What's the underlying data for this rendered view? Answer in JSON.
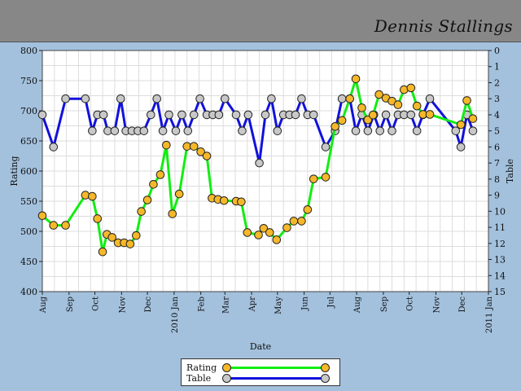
{
  "header": {
    "name": "Dennis Stallings"
  },
  "colors": {
    "background": "#a3c1dd",
    "header": "#878787",
    "rating_line": "#11ee11",
    "rating_marker": "#f5b82a",
    "table_line": "#1111dd",
    "table_marker": "#c8c8c8",
    "grid": "#dddddd"
  },
  "legend": {
    "rating_label": "Rating",
    "table_label": "Table"
  },
  "chart_data": {
    "type": "line",
    "title": "",
    "xlabel": "Date",
    "ylabel": "Rating",
    "y2label": "Table",
    "ylim": [
      400,
      800
    ],
    "y2lim": [
      0,
      15
    ],
    "y2_inverted": true,
    "y_ticks": [
      400,
      450,
      500,
      550,
      600,
      650,
      700,
      750,
      800
    ],
    "y2_ticks": [
      0,
      1,
      2,
      3,
      4,
      5,
      6,
      7,
      8,
      9,
      10,
      11,
      12,
      13,
      14,
      15
    ],
    "xlim": [
      "2009-08-01",
      "2011-01-01"
    ],
    "x_ticks": [
      {
        "date": "2009-08-01",
        "label": "Aug"
      },
      {
        "date": "2009-09-01",
        "label": "Sep"
      },
      {
        "date": "2009-10-01",
        "label": "Oct"
      },
      {
        "date": "2009-11-01",
        "label": "Nov"
      },
      {
        "date": "2009-12-01",
        "label": "Dec"
      },
      {
        "date": "2010-01-01",
        "label": "2010 Jan"
      },
      {
        "date": "2010-02-01",
        "label": "Feb"
      },
      {
        "date": "2010-03-01",
        "label": "Mar"
      },
      {
        "date": "2010-04-01",
        "label": "Apr"
      },
      {
        "date": "2010-05-01",
        "label": "May"
      },
      {
        "date": "2010-06-01",
        "label": "Jun"
      },
      {
        "date": "2010-07-01",
        "label": "Jul"
      },
      {
        "date": "2010-08-01",
        "label": "Aug"
      },
      {
        "date": "2010-09-01",
        "label": "Sep"
      },
      {
        "date": "2010-10-01",
        "label": "Oct"
      },
      {
        "date": "2010-11-01",
        "label": "Nov"
      },
      {
        "date": "2010-12-01",
        "label": "Dec"
      },
      {
        "date": "2011-01-01",
        "label": "2011 Jan"
      }
    ],
    "grid": true,
    "legend_position": "bottom-center",
    "series": [
      {
        "name": "Rating",
        "axis": "left",
        "points": [
          [
            "2009-08-01",
            526
          ],
          [
            "2009-08-14",
            510
          ],
          [
            "2009-08-28",
            510
          ],
          [
            "2009-09-20",
            560
          ],
          [
            "2009-09-28",
            558
          ],
          [
            "2009-10-04",
            521
          ],
          [
            "2009-10-10",
            466
          ],
          [
            "2009-10-15",
            495
          ],
          [
            "2009-10-21",
            490
          ],
          [
            "2009-10-28",
            481
          ],
          [
            "2009-11-04",
            481
          ],
          [
            "2009-11-11",
            479
          ],
          [
            "2009-11-18",
            493
          ],
          [
            "2009-11-24",
            533
          ],
          [
            "2009-12-01",
            552
          ],
          [
            "2009-12-08",
            578
          ],
          [
            "2009-12-16",
            594
          ],
          [
            "2009-12-23",
            643
          ],
          [
            "2009-12-30",
            529
          ],
          [
            "2010-01-07",
            562
          ],
          [
            "2010-01-16",
            641
          ],
          [
            "2010-01-24",
            641
          ],
          [
            "2010-02-01",
            632
          ],
          [
            "2010-02-08",
            625
          ],
          [
            "2010-02-14",
            555
          ],
          [
            "2010-02-21",
            553
          ],
          [
            "2010-02-28",
            551
          ],
          [
            "2010-03-14",
            550
          ],
          [
            "2010-03-20",
            549
          ],
          [
            "2010-03-27",
            498
          ],
          [
            "2010-04-09",
            494
          ],
          [
            "2010-04-15",
            505
          ],
          [
            "2010-04-22",
            498
          ],
          [
            "2010-04-30",
            486
          ],
          [
            "2010-05-12",
            506
          ],
          [
            "2010-05-20",
            517
          ],
          [
            "2010-05-29",
            517
          ],
          [
            "2010-06-05",
            536
          ],
          [
            "2010-06-12",
            587
          ],
          [
            "2010-06-26",
            590
          ],
          [
            "2010-07-07",
            674
          ],
          [
            "2010-07-15",
            684
          ],
          [
            "2010-07-24",
            720
          ],
          [
            "2010-07-31",
            753
          ],
          [
            "2010-08-07",
            705
          ],
          [
            "2010-08-14",
            685
          ],
          [
            "2010-08-20",
            693
          ],
          [
            "2010-08-27",
            727
          ],
          [
            "2010-09-04",
            721
          ],
          [
            "2010-09-11",
            716
          ],
          [
            "2010-09-18",
            710
          ],
          [
            "2010-09-25",
            735
          ],
          [
            "2010-10-03",
            738
          ],
          [
            "2010-10-10",
            708
          ],
          [
            "2010-10-17",
            694
          ],
          [
            "2010-10-25",
            694
          ],
          [
            "2010-11-30",
            677
          ],
          [
            "2010-12-07",
            717
          ],
          [
            "2010-12-14",
            687
          ]
        ]
      },
      {
        "name": "Table",
        "axis": "right",
        "points": [
          [
            "2009-08-01",
            4
          ],
          [
            "2009-08-14",
            6
          ],
          [
            "2009-08-28",
            3
          ],
          [
            "2009-09-20",
            3
          ],
          [
            "2009-09-28",
            5
          ],
          [
            "2009-10-04",
            4
          ],
          [
            "2009-10-11",
            4
          ],
          [
            "2009-10-16",
            5
          ],
          [
            "2009-10-24",
            5
          ],
          [
            "2009-10-31",
            3
          ],
          [
            "2009-11-06",
            5
          ],
          [
            "2009-11-13",
            5
          ],
          [
            "2009-11-20",
            5
          ],
          [
            "2009-11-27",
            5
          ],
          [
            "2009-12-05",
            4
          ],
          [
            "2009-12-12",
            3
          ],
          [
            "2009-12-19",
            5
          ],
          [
            "2009-12-26",
            4
          ],
          [
            "2010-01-03",
            5
          ],
          [
            "2010-01-10",
            4
          ],
          [
            "2010-01-17",
            5
          ],
          [
            "2010-01-24",
            4
          ],
          [
            "2010-01-31",
            3
          ],
          [
            "2010-02-08",
            4
          ],
          [
            "2010-02-15",
            4
          ],
          [
            "2010-02-22",
            4
          ],
          [
            "2010-03-01",
            3
          ],
          [
            "2010-03-14",
            4
          ],
          [
            "2010-03-21",
            5
          ],
          [
            "2010-03-28",
            4
          ],
          [
            "2010-04-10",
            7
          ],
          [
            "2010-04-17",
            4
          ],
          [
            "2010-04-24",
            3
          ],
          [
            "2010-05-01",
            5
          ],
          [
            "2010-05-08",
            4
          ],
          [
            "2010-05-15",
            4
          ],
          [
            "2010-05-22",
            4
          ],
          [
            "2010-05-29",
            3
          ],
          [
            "2010-06-05",
            4
          ],
          [
            "2010-06-12",
            4
          ],
          [
            "2010-06-26",
            6
          ],
          [
            "2010-07-07",
            5
          ],
          [
            "2010-07-15",
            3
          ],
          [
            "2010-07-24",
            3
          ],
          [
            "2010-07-31",
            5
          ],
          [
            "2010-08-07",
            4
          ],
          [
            "2010-08-14",
            5
          ],
          [
            "2010-08-21",
            4
          ],
          [
            "2010-08-28",
            5
          ],
          [
            "2010-09-04",
            4
          ],
          [
            "2010-09-11",
            5
          ],
          [
            "2010-09-18",
            4
          ],
          [
            "2010-09-25",
            4
          ],
          [
            "2010-10-03",
            4
          ],
          [
            "2010-10-10",
            5
          ],
          [
            "2010-10-17",
            4
          ],
          [
            "2010-10-25",
            3
          ],
          [
            "2010-11-24",
            5
          ],
          [
            "2010-11-30",
            6
          ],
          [
            "2010-12-07",
            4
          ],
          [
            "2010-12-14",
            5
          ]
        ]
      }
    ]
  }
}
